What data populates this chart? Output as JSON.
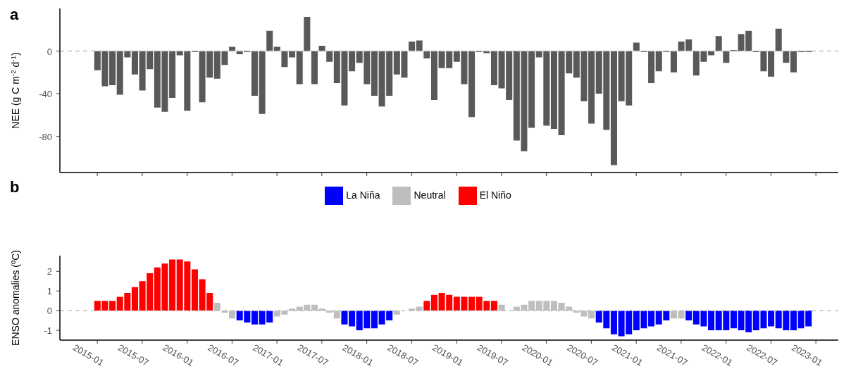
{
  "chart_data": [
    {
      "type": "bar",
      "title": "a",
      "ylabel": "NEE (g C m$^{-2}$ d$^{-1}$)",
      "x": [
        "2015-01",
        "2015-02",
        "2015-03",
        "2015-04",
        "2015-05",
        "2015-06",
        "2015-07",
        "2015-08",
        "2015-09",
        "2015-10",
        "2015-11",
        "2015-12",
        "2016-01",
        "2016-02",
        "2016-03",
        "2016-04",
        "2016-05",
        "2016-06",
        "2016-07",
        "2016-08",
        "2016-09",
        "2016-10",
        "2016-11",
        "2016-12",
        "2017-01",
        "2017-02",
        "2017-03",
        "2017-04",
        "2017-05",
        "2017-06",
        "2017-07",
        "2017-08",
        "2017-09",
        "2017-10",
        "2017-11",
        "2017-12",
        "2018-01",
        "2018-02",
        "2018-03",
        "2018-04",
        "2018-05",
        "2018-06",
        "2018-07",
        "2018-08",
        "2018-09",
        "2018-10",
        "2018-11",
        "2018-12",
        "2019-01",
        "2019-02",
        "2019-03",
        "2019-04",
        "2019-05",
        "2019-06",
        "2019-07",
        "2019-08",
        "2019-09",
        "2019-10",
        "2019-11",
        "2019-12",
        "2020-01",
        "2020-02",
        "2020-03",
        "2020-04",
        "2020-05",
        "2020-06",
        "2020-07",
        "2020-08",
        "2020-09",
        "2020-10",
        "2020-11",
        "2020-12",
        "2021-01",
        "2021-02",
        "2021-03",
        "2021-04",
        "2021-05",
        "2021-06",
        "2021-07",
        "2021-08",
        "2021-09",
        "2021-10",
        "2021-11",
        "2021-12",
        "2022-01",
        "2022-02",
        "2022-03",
        "2022-04",
        "2022-05",
        "2022-06",
        "2022-07",
        "2022-08",
        "2022-09",
        "2022-10",
        "2022-11",
        "2022-12"
      ],
      "series": [
        {
          "color": "#595959",
          "values": [
            -18,
            -33,
            -32,
            -41,
            -6,
            -22,
            -37,
            -17,
            -53,
            -57,
            -44,
            -4,
            -56,
            -1,
            -48,
            -25,
            -26,
            -13,
            4,
            -3,
            -1,
            -42,
            -59,
            19,
            4,
            -15,
            -6,
            -31,
            32,
            -31,
            5,
            -10,
            -30,
            -51,
            -19,
            -11,
            -31,
            -42,
            -52,
            -42,
            -22,
            -25,
            9,
            10,
            -7,
            -46,
            -16,
            -16,
            -10,
            -31,
            -62,
            -1,
            -2,
            -32,
            -35,
            -46,
            -84,
            -94,
            -72,
            -6,
            -70,
            -73,
            -79,
            -21,
            -25,
            -47,
            -68,
            -40,
            -74,
            -107,
            -47,
            -51,
            8,
            -1,
            -30,
            -19,
            -1,
            -20,
            9,
            11,
            -23,
            -10,
            -4,
            14,
            -11,
            1,
            16,
            19,
            -1,
            -19,
            -24,
            21,
            -11,
            -20,
            -1,
            -1
          ]
        }
      ],
      "xlim": [
        "2014-08",
        "2023-04"
      ],
      "xticks": [
        "2015-01",
        "2015-07",
        "2016-01",
        "2016-07",
        "2017-01",
        "2017-07",
        "2018-01",
        "2018-07",
        "2019-01",
        "2019-07",
        "2020-01",
        "2020-07",
        "2021-01",
        "2021-07",
        "2022-01",
        "2022-07",
        "2023-01"
      ],
      "ylim": [
        -114,
        40
      ],
      "yticks": [
        -80,
        -40,
        0
      ],
      "tick_labels": "y",
      "ref_lines": [
        {
          "axis": "y",
          "value": 0,
          "color": "#bfbfbf",
          "line_style": "dashed"
        }
      ]
    },
    {
      "type": "bar",
      "title": "b",
      "ylabel": "ENSO anomalies (ºC)",
      "stacked": true,
      "legend": "top",
      "x": [
        "2015-01",
        "2015-02",
        "2015-03",
        "2015-04",
        "2015-05",
        "2015-06",
        "2015-07",
        "2015-08",
        "2015-09",
        "2015-10",
        "2015-11",
        "2015-12",
        "2016-01",
        "2016-02",
        "2016-03",
        "2016-04",
        "2016-05",
        "2016-06",
        "2016-07",
        "2016-08",
        "2016-09",
        "2016-10",
        "2016-11",
        "2016-12",
        "2017-01",
        "2017-02",
        "2017-03",
        "2017-04",
        "2017-05",
        "2017-06",
        "2017-07",
        "2017-08",
        "2017-09",
        "2017-10",
        "2017-11",
        "2017-12",
        "2018-01",
        "2018-02",
        "2018-03",
        "2018-04",
        "2018-05",
        "2018-06",
        "2018-07",
        "2018-08",
        "2018-09",
        "2018-10",
        "2018-11",
        "2018-12",
        "2019-01",
        "2019-02",
        "2019-03",
        "2019-04",
        "2019-05",
        "2019-06",
        "2019-07",
        "2019-08",
        "2019-09",
        "2019-10",
        "2019-11",
        "2019-12",
        "2020-01",
        "2020-02",
        "2020-03",
        "2020-04",
        "2020-05",
        "2020-06",
        "2020-07",
        "2020-08",
        "2020-09",
        "2020-10",
        "2020-11",
        "2020-12",
        "2021-01",
        "2021-02",
        "2021-03",
        "2021-04",
        "2021-05",
        "2021-06",
        "2021-07",
        "2021-08",
        "2021-09",
        "2021-10",
        "2021-11",
        "2021-12",
        "2022-01",
        "2022-02",
        "2022-03",
        "2022-04",
        "2022-05",
        "2022-06",
        "2022-07",
        "2022-08",
        "2022-09",
        "2022-10",
        "2022-11",
        "2022-12"
      ],
      "series": [
        {
          "name": "La Niña",
          "color": "#0000ff",
          "values": [
            null,
            null,
            null,
            null,
            null,
            null,
            null,
            null,
            null,
            null,
            null,
            null,
            null,
            null,
            null,
            null,
            null,
            null,
            null,
            -0.5,
            -0.6,
            -0.7,
            -0.7,
            -0.6,
            null,
            null,
            null,
            null,
            null,
            null,
            null,
            null,
            null,
            -0.7,
            -0.8,
            -1.0,
            -0.9,
            -0.9,
            -0.7,
            -0.5,
            null,
            null,
            null,
            null,
            null,
            null,
            null,
            null,
            null,
            null,
            null,
            null,
            null,
            null,
            null,
            null,
            null,
            null,
            null,
            null,
            null,
            null,
            null,
            null,
            null,
            null,
            null,
            -0.6,
            -0.9,
            -1.2,
            -1.3,
            -1.2,
            -1.0,
            -0.9,
            -0.8,
            -0.7,
            -0.5,
            null,
            null,
            -0.5,
            -0.7,
            -0.8,
            -1.0,
            -1.0,
            -1.0,
            -0.9,
            -1.0,
            -1.1,
            -1.0,
            -0.9,
            -0.8,
            -0.9,
            -1.0,
            -1.0,
            -0.9,
            -0.8
          ]
        },
        {
          "name": "Neutral",
          "color": "#bebebe",
          "values": [
            null,
            null,
            null,
            null,
            null,
            null,
            null,
            null,
            null,
            null,
            null,
            null,
            null,
            null,
            null,
            null,
            0.4,
            -0.1,
            -0.4,
            null,
            null,
            null,
            null,
            null,
            -0.3,
            -0.2,
            0.1,
            0.2,
            0.3,
            0.3,
            0.1,
            -0.1,
            -0.4,
            null,
            null,
            null,
            null,
            null,
            null,
            null,
            -0.2,
            0,
            0.1,
            0.2,
            null,
            null,
            null,
            null,
            null,
            null,
            null,
            null,
            null,
            null,
            0.3,
            0,
            0.2,
            0.3,
            0.5,
            0.5,
            0.5,
            0.5,
            0.4,
            0.2,
            -0.1,
            -0.3,
            -0.4,
            null,
            null,
            null,
            null,
            null,
            null,
            null,
            null,
            null,
            null,
            -0.4,
            -0.4,
            null,
            null,
            null,
            null,
            null,
            null,
            null,
            null,
            null,
            null,
            null,
            null,
            null,
            null,
            null,
            null,
            null
          ]
        },
        {
          "name": "El Niño",
          "color": "#ff0000",
          "values": [
            0.5,
            0.5,
            0.5,
            0.7,
            0.9,
            1.2,
            1.5,
            1.9,
            2.2,
            2.4,
            2.6,
            2.6,
            2.5,
            2.1,
            1.6,
            0.9,
            null,
            null,
            null,
            null,
            null,
            null,
            null,
            null,
            null,
            null,
            null,
            null,
            null,
            null,
            null,
            null,
            null,
            null,
            null,
            null,
            null,
            null,
            null,
            null,
            null,
            null,
            null,
            null,
            0.5,
            0.8,
            0.9,
            0.8,
            0.7,
            0.7,
            0.7,
            0.7,
            0.5,
            0.5,
            null,
            null,
            null,
            null,
            null,
            null,
            null,
            null,
            null,
            null,
            null,
            null,
            null,
            null,
            null,
            null,
            null,
            null,
            null,
            null,
            null,
            null,
            null,
            null,
            null,
            null,
            null,
            null,
            null,
            null,
            null,
            null,
            null,
            null,
            null,
            null,
            null,
            null,
            null,
            null,
            null,
            null
          ]
        }
      ],
      "xlim": [
        "2014-08",
        "2023-04"
      ],
      "xticks": [
        "2015-01",
        "2015-07",
        "2016-01",
        "2016-07",
        "2017-01",
        "2017-07",
        "2018-01",
        "2018-07",
        "2019-01",
        "2019-07",
        "2020-01",
        "2020-07",
        "2021-01",
        "2021-07",
        "2022-01",
        "2022-07",
        "2023-01"
      ],
      "ylim": [
        -1.5,
        2.8
      ],
      "yticks": [
        -1,
        0,
        1,
        2
      ],
      "ref_lines": [
        {
          "axis": "y",
          "value": 0,
          "color": "#bfbfbf",
          "line_style": "dashed"
        }
      ]
    }
  ]
}
